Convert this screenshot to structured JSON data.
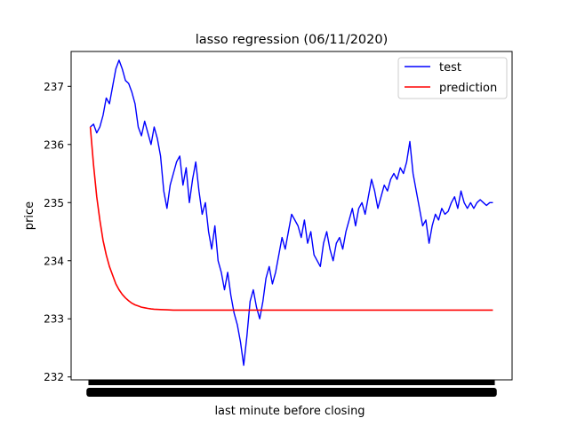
{
  "chart_data": {
    "type": "line",
    "title": "lasso regression (06/11/2020)",
    "xlabel": "last minute before closing",
    "ylabel": "price",
    "ylim": [
      231.95,
      237.6
    ],
    "xlim": [
      -30,
      660
    ],
    "yticks": [
      232,
      233,
      234,
      235,
      236,
      237
    ],
    "grid": false,
    "legend_position": "top-right",
    "series": [
      {
        "name": "test",
        "color": "#0000ff",
        "x": [
          0,
          5,
          10,
          15,
          20,
          25,
          30,
          35,
          40,
          45,
          50,
          55,
          60,
          65,
          70,
          75,
          80,
          85,
          90,
          95,
          100,
          105,
          110,
          115,
          120,
          125,
          130,
          135,
          140,
          145,
          150,
          155,
          160,
          165,
          170,
          175,
          180,
          185,
          190,
          195,
          200,
          205,
          210,
          215,
          220,
          225,
          230,
          235,
          240,
          245,
          250,
          255,
          260,
          265,
          270,
          275,
          280,
          285,
          290,
          295,
          300,
          305,
          310,
          315,
          320,
          325,
          330,
          335,
          340,
          345,
          350,
          355,
          360,
          365,
          370,
          375,
          380,
          385,
          390,
          395,
          400,
          405,
          410,
          415,
          420,
          425,
          430,
          435,
          440,
          445,
          450,
          455,
          460,
          465,
          470,
          475,
          480,
          485,
          490,
          495,
          500,
          505,
          510,
          515,
          520,
          525,
          530,
          535,
          540,
          545,
          550,
          555,
          560,
          565,
          570,
          575,
          580,
          585,
          590,
          595,
          600,
          605,
          610,
          615,
          620,
          625,
          630
        ],
        "values": [
          236.3,
          236.35,
          236.2,
          236.3,
          236.5,
          236.8,
          236.7,
          237.0,
          237.3,
          237.45,
          237.3,
          237.1,
          237.05,
          236.9,
          236.7,
          236.3,
          236.15,
          236.4,
          236.2,
          236.0,
          236.3,
          236.1,
          235.8,
          235.2,
          234.9,
          235.3,
          235.5,
          235.7,
          235.8,
          235.3,
          235.6,
          235.0,
          235.4,
          235.7,
          235.2,
          234.8,
          235.0,
          234.5,
          234.2,
          234.6,
          234.0,
          233.8,
          233.5,
          233.8,
          233.4,
          233.1,
          232.9,
          232.6,
          232.2,
          232.7,
          233.3,
          233.5,
          233.2,
          233.0,
          233.3,
          233.7,
          233.9,
          233.6,
          233.8,
          234.1,
          234.4,
          234.2,
          234.5,
          234.8,
          234.7,
          234.6,
          234.4,
          234.7,
          234.3,
          234.5,
          234.1,
          234.0,
          233.9,
          234.3,
          234.5,
          234.2,
          234.0,
          234.3,
          234.4,
          234.2,
          234.5,
          234.7,
          234.9,
          234.6,
          234.9,
          235.0,
          234.8,
          235.1,
          235.4,
          235.2,
          234.9,
          235.1,
          235.3,
          235.2,
          235.4,
          235.5,
          235.4,
          235.6,
          235.5,
          235.7,
          236.05,
          235.5,
          235.2,
          234.9,
          234.6,
          234.7,
          234.3,
          234.6,
          234.8,
          234.7,
          234.9,
          234.8,
          234.85,
          235.0,
          235.1,
          234.9,
          235.2,
          235.0,
          234.9,
          235.0,
          234.9,
          235.0,
          235.05,
          235.0,
          234.95,
          235.0,
          235.0
        ]
      },
      {
        "name": "prediction",
        "color": "#ff0000",
        "x": [
          0,
          5,
          10,
          15,
          20,
          25,
          30,
          35,
          40,
          45,
          50,
          55,
          60,
          65,
          70,
          75,
          80,
          85,
          90,
          95,
          100,
          110,
          120,
          130,
          140,
          150,
          160,
          170,
          180,
          190,
          200,
          225,
          250,
          275,
          300,
          325,
          350,
          375,
          400,
          425,
          450,
          475,
          500,
          525,
          550,
          575,
          600,
          630
        ],
        "values": [
          236.3,
          235.65,
          235.1,
          234.7,
          234.35,
          234.1,
          233.9,
          233.75,
          233.6,
          233.5,
          233.42,
          233.36,
          233.31,
          233.27,
          233.24,
          233.22,
          233.2,
          233.19,
          233.18,
          233.17,
          233.165,
          233.16,
          233.155,
          233.15,
          233.15,
          233.15,
          233.15,
          233.15,
          233.15,
          233.15,
          233.15,
          233.15,
          233.15,
          233.15,
          233.15,
          233.15,
          233.15,
          233.15,
          233.15,
          233.15,
          233.15,
          233.15,
          233.15,
          233.15,
          233.15,
          233.15,
          233.15,
          233.15
        ]
      }
    ]
  }
}
